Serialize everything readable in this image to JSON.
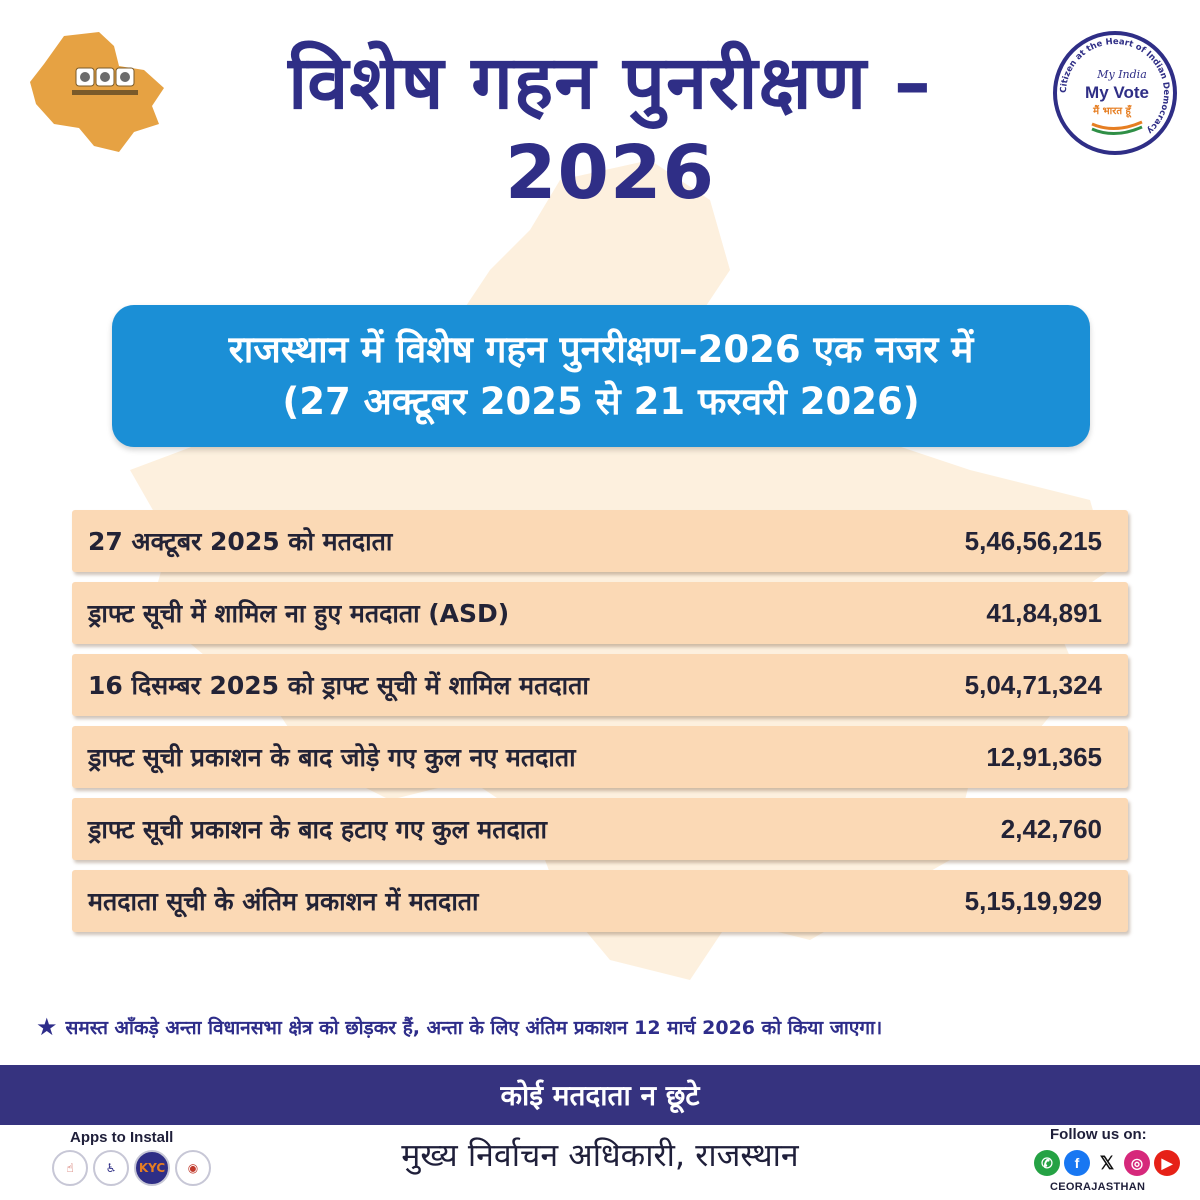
{
  "header": {
    "title": "विशेष गहन पुनरीक्षण –2026",
    "badge": {
      "ring_text": "Citizen at the Heart of Indian Democracy",
      "script": "My India",
      "main": "My Vote",
      "tagline": "मैं भारत हूँ"
    }
  },
  "banner": {
    "line1": "राजस्थान में विशेष गहन पुनरीक्षण–2026 एक नजर में",
    "line2": "(27 अक्टूबर 2025 से 21 फरवरी 2026)"
  },
  "stats": [
    {
      "label": "27 अक्टूबर 2025 को मतदाता",
      "value": "5,46,56,215"
    },
    {
      "label": "ड्राफ्ट सूची में शामिल ना हुए मतदाता (ASD)",
      "value": "41,84,891"
    },
    {
      "label": "16 दिसम्बर 2025 को ड्राफ्ट सूची में शामिल मतदाता",
      "value": "5,04,71,324"
    },
    {
      "label": "ड्राफ्ट सूची प्रकाशन के बाद जोड़े गए कुल नए मतदाता",
      "value": "12,91,365"
    },
    {
      "label": "ड्राफ्ट सूची प्रकाशन के बाद हटाए गए कुल  मतदाता",
      "value": "2,42,760"
    },
    {
      "label": "मतदाता सूची के अंतिम प्रकाशन में  मतदाता",
      "value": "5,15,19,929"
    }
  ],
  "footnote": "समस्त आँकड़े अन्ता विधानसभा क्षेत्र को छोड़कर हैं, अन्ता के लिए अंतिम प्रकाशन 12 मार्च 2026 को किया जाएगा।",
  "slogan": "कोई मतदाता न छूटे",
  "footer": {
    "apps_title": "Apps to Install",
    "authority": "मुख्य निर्वाचन अधिकारी, राजस्थान",
    "follow_title": "Follow us on:",
    "handle": "CEORAJASTHAN"
  },
  "apps": [
    "cvigil-icon",
    "saksham-icon",
    "kyc-icon",
    "voter-helpline-icon"
  ],
  "social_icons": [
    "whatsapp-icon",
    "facebook-icon",
    "x-icon",
    "instagram-icon",
    "youtube-icon"
  ],
  "colors": {
    "title": "#2f2e86",
    "banner": "#1b8fd6",
    "row": "#fbd9b5",
    "map_bg": "#fdf0de",
    "band": "#36337f"
  }
}
